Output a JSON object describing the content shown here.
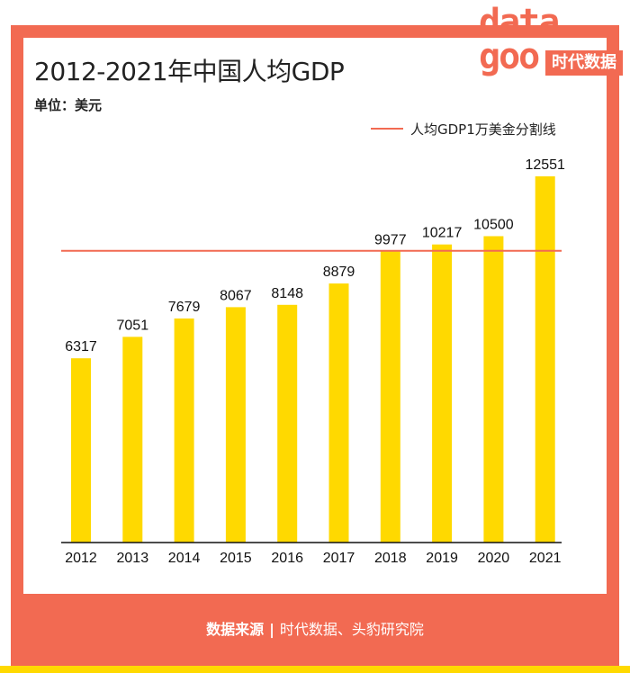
{
  "header": {
    "title": "2012-2021年中国人均GDP",
    "unit": "单位：美元",
    "legend": "人均GDP1万美金分割线"
  },
  "logo": {
    "word_top": "data",
    "word_bottom": "goo",
    "brand": "时代数据"
  },
  "footer": {
    "source_label": "数据来源",
    "separator": "|",
    "source_value": "时代数据、头豹研究院"
  },
  "colors": {
    "accent": "#f26a52",
    "bar": "#ffd900"
  },
  "chart_data": {
    "type": "bar",
    "title": "2012-2021年中国人均GDP",
    "ylabel": "单位：美元",
    "xlabel": "",
    "categories": [
      "2012",
      "2013",
      "2014",
      "2015",
      "2016",
      "2017",
      "2018",
      "2019",
      "2020",
      "2021"
    ],
    "values": [
      6317,
      7051,
      7679,
      8067,
      8148,
      8879,
      9977,
      10217,
      10500,
      12551
    ],
    "reference_line": {
      "value": 10000,
      "label": "人均GDP1万美金分割线"
    },
    "ylim": [
      0,
      13000
    ],
    "grid": false,
    "legend_position": "top-right"
  }
}
